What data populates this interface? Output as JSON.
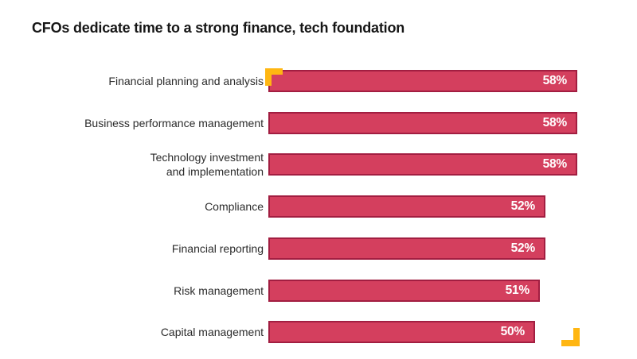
{
  "page": {
    "title": "CFOs dedicate time to a strong finance, tech foundation"
  },
  "chart_data": {
    "type": "bar",
    "orientation": "horizontal",
    "title": "CFOs dedicate time to a strong finance, tech foundation",
    "categories": [
      "Financial planning and analysis",
      "Business performance management",
      "Technology investment\nand implementation",
      "Compliance",
      "Financial reporting",
      "Risk management",
      "Capital management"
    ],
    "values": [
      58,
      58,
      58,
      52,
      52,
      51,
      50
    ],
    "value_labels": [
      "58%",
      "58%",
      "58%",
      "52%",
      "52%",
      "51%",
      "50%"
    ],
    "value_suffix": "%",
    "xlim": [
      0,
      60
    ],
    "grid": false,
    "legend": false,
    "bar_color": "#d43f5e",
    "bar_border_color": "#a21e41",
    "accent_color": "#ffb612",
    "value_label_color": "#ffffff",
    "title_color": "#161616",
    "category_label_color": "#2b2b2b"
  }
}
